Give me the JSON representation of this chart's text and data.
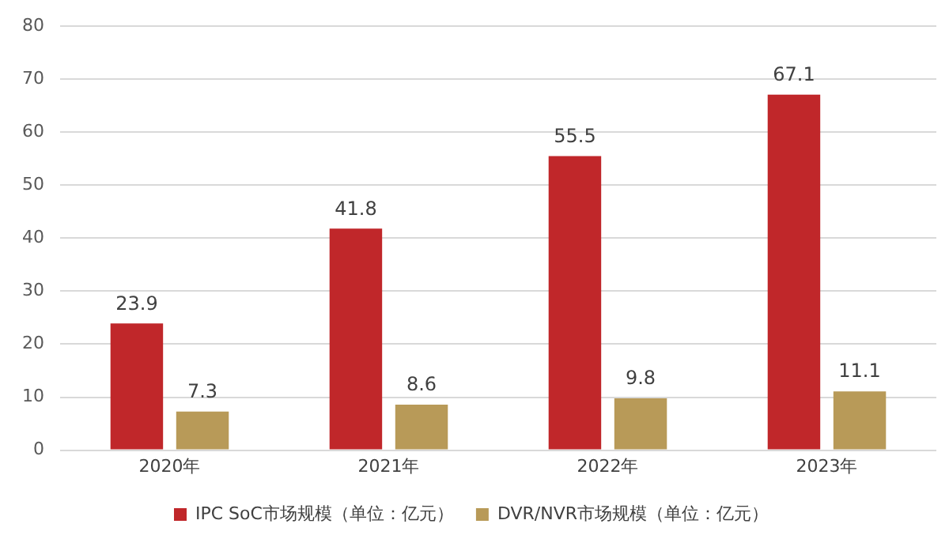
{
  "chart_data": {
    "type": "bar",
    "categories": [
      "2020年",
      "2021年",
      "2022年",
      "2023年"
    ],
    "series": [
      {
        "name": "IPC SoC市场规模（单位：亿元）",
        "color": "#c0272a",
        "values": [
          23.9,
          41.8,
          55.5,
          67.1
        ]
      },
      {
        "name": "DVR/NVR市场规模（单位：亿元）",
        "color": "#b89a58",
        "values": [
          7.3,
          8.6,
          9.8,
          11.1
        ]
      }
    ],
    "ylim": [
      0,
      80
    ],
    "yticks": [
      0,
      10,
      20,
      30,
      40,
      50,
      60,
      70,
      80
    ],
    "grid": "y",
    "legend": "bottom",
    "data_labels": true
  }
}
